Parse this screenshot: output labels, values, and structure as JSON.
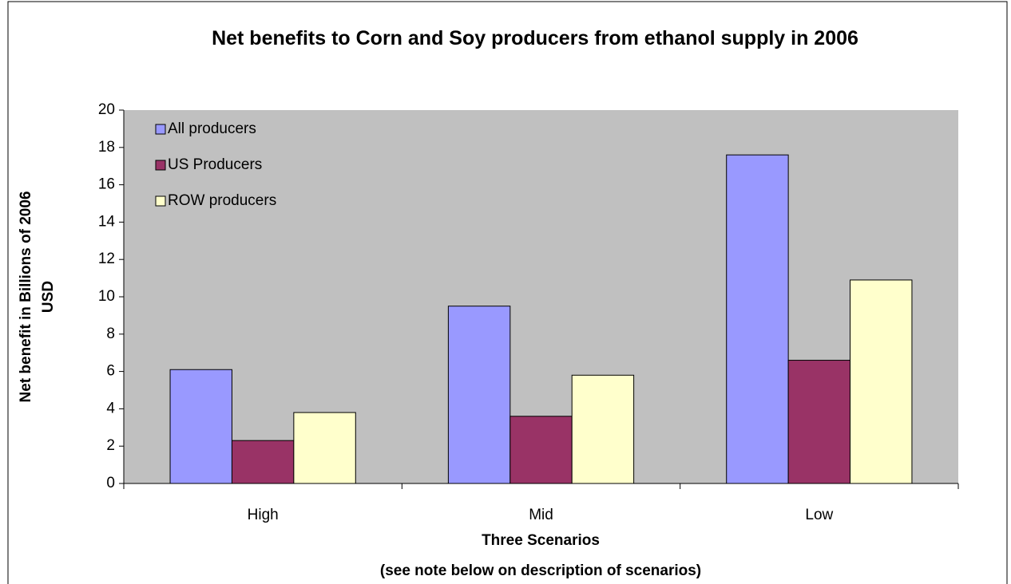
{
  "chart_data": {
    "type": "bar",
    "title": "Net benefits to Corn and Soy producers from ethanol supply in 2006",
    "y_label": "Net benefit in Billions of 2006 USD",
    "x_label": "Three Scenarios",
    "x_note": "(see note below on description of scenarios)",
    "categories": [
      "High",
      "Mid",
      "Low"
    ],
    "series": [
      {
        "name": "All producers",
        "color": "#9999ff",
        "values": [
          6.1,
          9.5,
          17.6
        ]
      },
      {
        "name": "US Producers",
        "color": "#993366",
        "values": [
          2.3,
          3.6,
          6.6
        ]
      },
      {
        "name": "ROW producers",
        "color": "#ffffcc",
        "values": [
          3.8,
          5.8,
          10.9
        ]
      }
    ],
    "ylim": [
      0,
      20
    ],
    "yticks": [
      0,
      2,
      4,
      6,
      8,
      10,
      12,
      14,
      16,
      18,
      20
    ],
    "legend": "top-left",
    "plot_background": "#c0c0c0"
  }
}
